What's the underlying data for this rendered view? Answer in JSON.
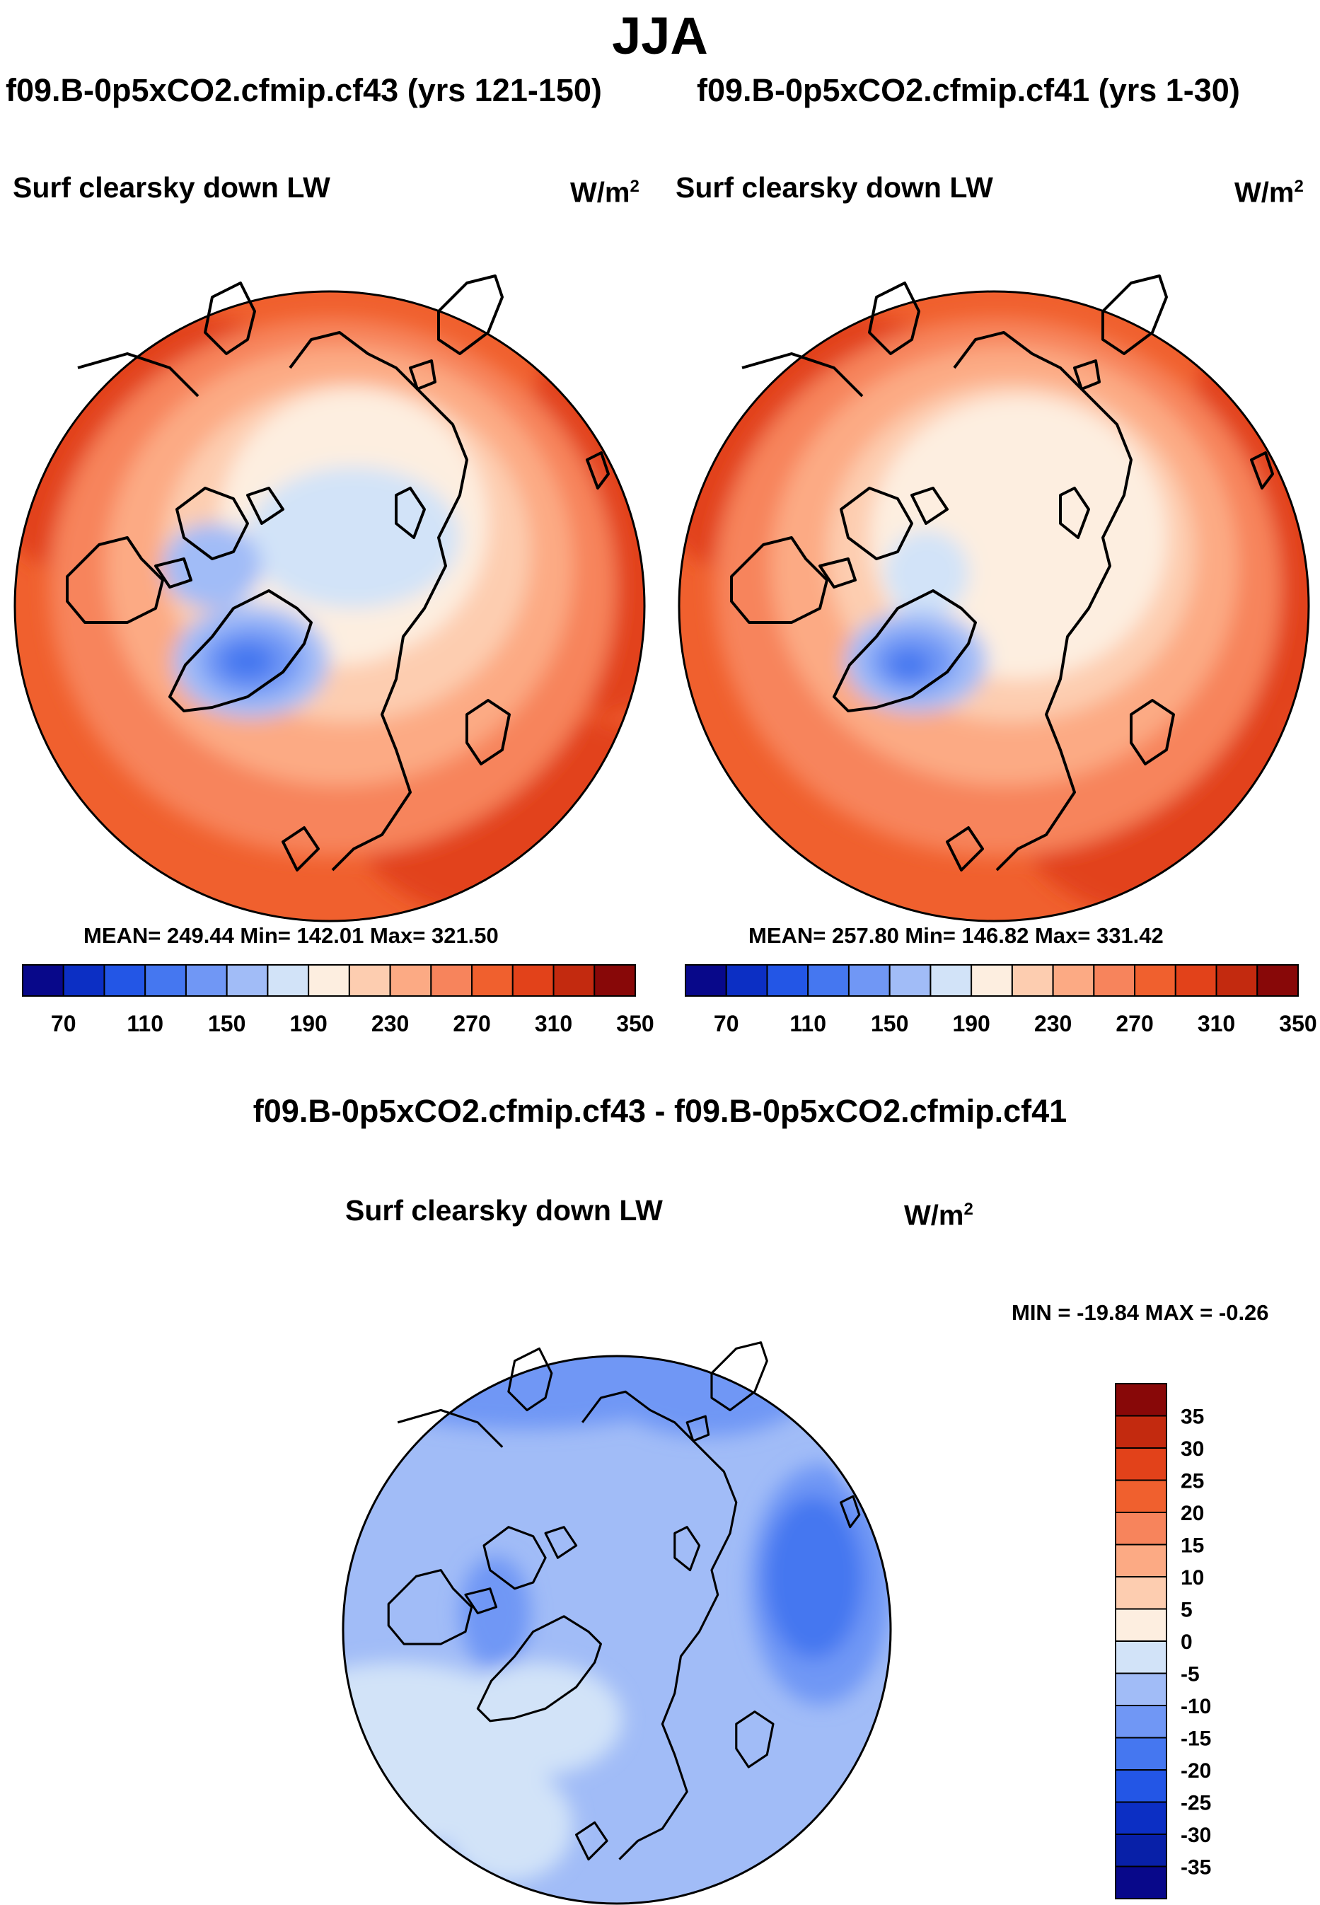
{
  "season": "JJA",
  "left_panel": {
    "case_title": "f09.B-0p5xCO2.cfmip.cf43 (yrs 121-150)",
    "variable": "Surf clearsky down LW",
    "units_base": "W/m",
    "units_exp": "2",
    "stats": "MEAN= 249.44  Min= 142.01  Max= 321.50"
  },
  "right_panel": {
    "case_title": "f09.B-0p5xCO2.cfmip.cf41 (yrs 1-30)",
    "variable": "Surf clearsky down LW",
    "units_base": "W/m",
    "units_exp": "2",
    "stats": "MEAN= 257.80  Min= 146.82  Max= 331.42"
  },
  "diff_panel": {
    "title": "f09.B-0p5xCO2.cfmip.cf43 - f09.B-0p5xCO2.cfmip.cf41",
    "variable": "Surf clearsky down LW",
    "units_base": "W/m",
    "units_exp": "2",
    "minmax": "MIN = -19.84 MAX =  -0.26"
  },
  "abs_colorbar": {
    "colors": [
      "#08088a",
      "#0c2fc4",
      "#2356e6",
      "#4577f0",
      "#7097f5",
      "#a1bcf7",
      "#d2e3f8",
      "#fdeee0",
      "#fdcdb0",
      "#fcaa84",
      "#f7845c",
      "#f0602e",
      "#e2421a",
      "#c32a0f",
      "#880808"
    ],
    "labels": [
      "70",
      "110",
      "150",
      "190",
      "230",
      "270",
      "310",
      "350"
    ]
  },
  "diff_colorbar": {
    "colors": [
      "#880808",
      "#c32a0f",
      "#e2421a",
      "#f0602e",
      "#f7845c",
      "#fcaa84",
      "#fdcdb0",
      "#fdeee0",
      "#d2e3f8",
      "#a1bcf7",
      "#7097f5",
      "#4577f0",
      "#2356e6",
      "#0c2fc4",
      "#0820a8",
      "#08088a"
    ],
    "labels": [
      "35",
      "30",
      "25",
      "20",
      "15",
      "10",
      "5",
      "0",
      "-5",
      "-10",
      "-15",
      "-20",
      "-25",
      "-30",
      "-35"
    ]
  }
}
